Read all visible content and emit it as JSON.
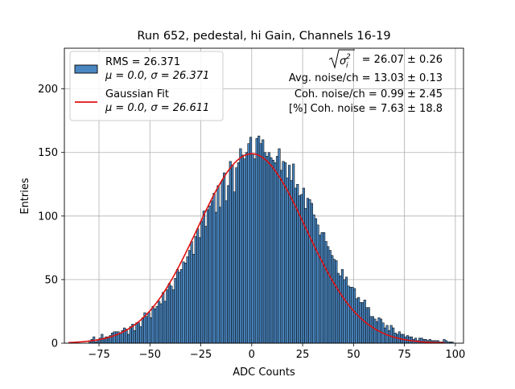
{
  "chart_data": {
    "type": "bar",
    "title": "Run 652, pedestal, hi Gain, Channels 16-19",
    "xlabel": "ADC Counts",
    "ylabel": "Entries",
    "xlim": [
      -92,
      104
    ],
    "ylim": [
      0,
      232
    ],
    "xticks": [
      -75,
      -50,
      -25,
      0,
      25,
      50,
      75,
      100
    ],
    "xtick_labels": [
      "−75",
      "−50",
      "−25",
      "0",
      "25",
      "50",
      "75",
      "100"
    ],
    "yticks": [
      0,
      50,
      100,
      150,
      200
    ],
    "ytick_labels": [
      "0",
      "50",
      "100",
      "150",
      "200"
    ],
    "grid": true,
    "legend_position": "top-left",
    "histogram": {
      "name": "RMS = 26.371",
      "stats": "μ = 0.0, σ = 26.371",
      "bin_start": -80,
      "bin_width": 1,
      "counts": [
        2,
        3,
        5,
        1,
        3,
        4,
        7,
        4,
        5,
        5,
        6,
        8,
        9,
        9,
        9,
        8,
        10,
        12,
        11,
        7,
        13,
        15,
        10,
        16,
        16,
        13,
        20,
        24,
        21,
        24,
        20,
        29,
        27,
        29,
        33,
        31,
        40,
        33,
        42,
        47,
        45,
        42,
        51,
        58,
        56,
        58,
        64,
        63,
        68,
        73,
        80,
        70,
        84,
        90,
        83,
        96,
        104,
        92,
        105,
        108,
        112,
        118,
        103,
        124,
        107,
        128,
        134,
        112,
        124,
        143,
        140,
        119,
        138,
        142,
        153,
        148,
        145,
        150,
        157,
        162,
        149,
        145,
        161,
        163,
        157,
        160,
        150,
        147,
        150,
        146,
        144,
        142,
        147,
        153,
        136,
        143,
        142,
        130,
        140,
        128,
        141,
        122,
        125,
        116,
        117,
        122,
        106,
        114,
        113,
        110,
        101,
        98,
        93,
        85,
        87,
        87,
        80,
        76,
        73,
        69,
        66,
        65,
        55,
        53,
        58,
        50,
        52,
        45,
        44,
        44,
        43,
        35,
        36,
        32,
        32,
        34,
        28,
        28,
        21,
        21,
        19,
        17,
        20,
        19,
        16,
        12,
        14,
        10,
        14,
        12,
        8,
        7,
        9,
        7,
        7,
        5,
        6,
        5,
        5,
        3,
        4,
        2,
        4,
        4,
        3,
        3,
        2,
        3,
        2,
        2,
        2,
        2,
        1,
        1,
        3,
        2,
        1,
        1,
        1,
        0
      ],
      "fill_color": "#4a86c0",
      "edge_color": "#000000"
    },
    "fit": {
      "name": "Gaussian Fit",
      "stats": "μ = 0.0, σ = 26.611",
      "mu": 0.0,
      "sigma": 26.611,
      "amplitude": 149,
      "x_range": [
        -90,
        95
      ],
      "color": "#e01010"
    },
    "annotations": {
      "sigma_value": "= 26.07 ± 0.26",
      "avg_noise": "Avg. noise/ch = 13.03 ± 0.13",
      "coh_noise": "Coh. noise/ch = 0.99 ± 2.45",
      "coh_noise_pct": "[%] Coh. noise = 7.63 ± 18.8"
    }
  }
}
